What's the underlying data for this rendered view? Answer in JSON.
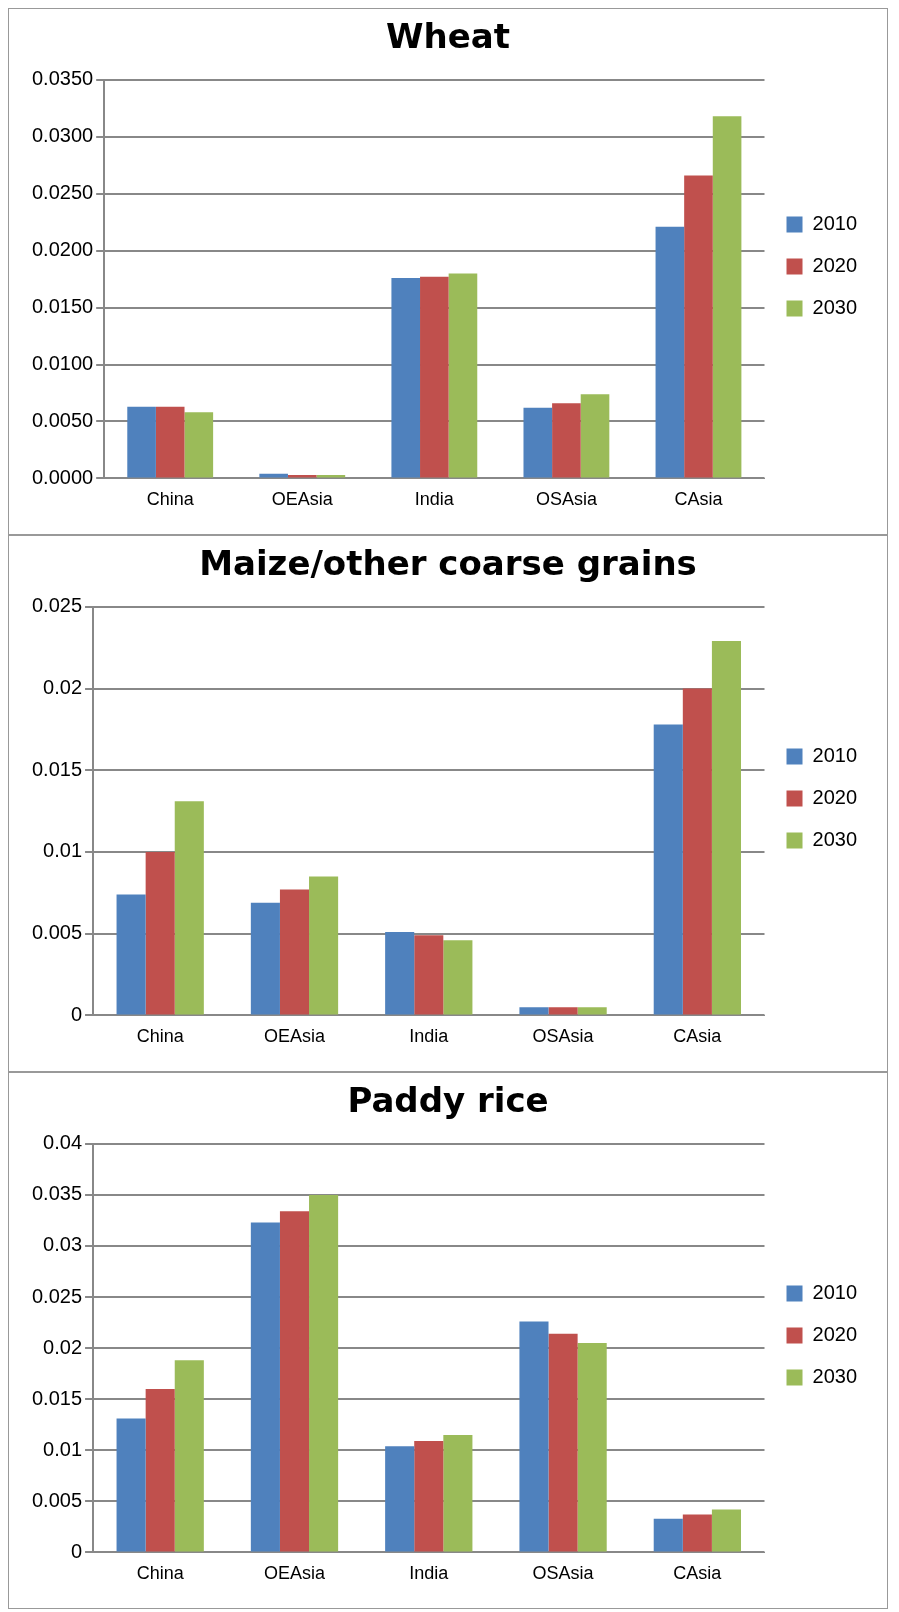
{
  "chart_data": [
    {
      "type": "bar",
      "title": "Wheat",
      "categories": [
        "China",
        "OEAsia",
        "India",
        "OSAsia",
        "CAsia"
      ],
      "series": [
        {
          "name": "2010",
          "color": "#4f81bd",
          "values": [
            0.0063,
            0.0004,
            0.0176,
            0.0062,
            0.0221
          ]
        },
        {
          "name": "2020",
          "color": "#c0504d",
          "values": [
            0.0063,
            0.0003,
            0.0177,
            0.0066,
            0.0266
          ]
        },
        {
          "name": "2030",
          "color": "#9bbb59",
          "values": [
            0.0058,
            0.0003,
            0.018,
            0.0074,
            0.0318
          ]
        }
      ],
      "ylim": [
        0,
        0.035
      ],
      "yticks": [
        {
          "value": 0,
          "label": "0.0000"
        },
        {
          "value": 0.005,
          "label": "0.0050"
        },
        {
          "value": 0.01,
          "label": "0.0100"
        },
        {
          "value": 0.015,
          "label": "0.0150"
        },
        {
          "value": 0.02,
          "label": "0.0200"
        },
        {
          "value": 0.025,
          "label": "0.0250"
        },
        {
          "value": 0.03,
          "label": "0.0300"
        },
        {
          "value": 0.035,
          "label": "0.0350"
        }
      ],
      "grid": "y",
      "legend": "right"
    },
    {
      "type": "bar",
      "title": "Maize/other coarse grains",
      "categories": [
        "China",
        "OEAsia",
        "India",
        "OSAsia",
        "CAsia"
      ],
      "series": [
        {
          "name": "2010",
          "color": "#4f81bd",
          "values": [
            0.0074,
            0.0069,
            0.0051,
            0.0005,
            0.0178
          ]
        },
        {
          "name": "2020",
          "color": "#c0504d",
          "values": [
            0.01,
            0.0077,
            0.0049,
            0.0005,
            0.02
          ]
        },
        {
          "name": "2030",
          "color": "#9bbb59",
          "values": [
            0.0131,
            0.0085,
            0.0046,
            0.0005,
            0.0229
          ]
        }
      ],
      "ylim": [
        0,
        0.025
      ],
      "yticks": [
        0,
        0.005,
        0.01,
        0.015,
        0.02,
        0.025
      ],
      "grid": "y",
      "legend": "right"
    },
    {
      "type": "bar",
      "title": "Paddy rice",
      "categories": [
        "China",
        "OEAsia",
        "India",
        "OSAsia",
        "CAsia"
      ],
      "series": [
        {
          "name": "2010",
          "color": "#4f81bd",
          "values": [
            0.0131,
            0.0323,
            0.0104,
            0.0226,
            0.0033
          ]
        },
        {
          "name": "2020",
          "color": "#c0504d",
          "values": [
            0.016,
            0.0334,
            0.0109,
            0.0214,
            0.0037
          ]
        },
        {
          "name": "2030",
          "color": "#9bbb59",
          "values": [
            0.0188,
            0.035,
            0.0115,
            0.0205,
            0.0042
          ]
        }
      ],
      "ylim": [
        0,
        0.04
      ],
      "yticks": [
        0,
        0.005,
        0.01,
        0.015,
        0.02,
        0.025,
        0.03,
        0.035,
        0.04
      ],
      "grid": "y",
      "legend": "right"
    }
  ]
}
